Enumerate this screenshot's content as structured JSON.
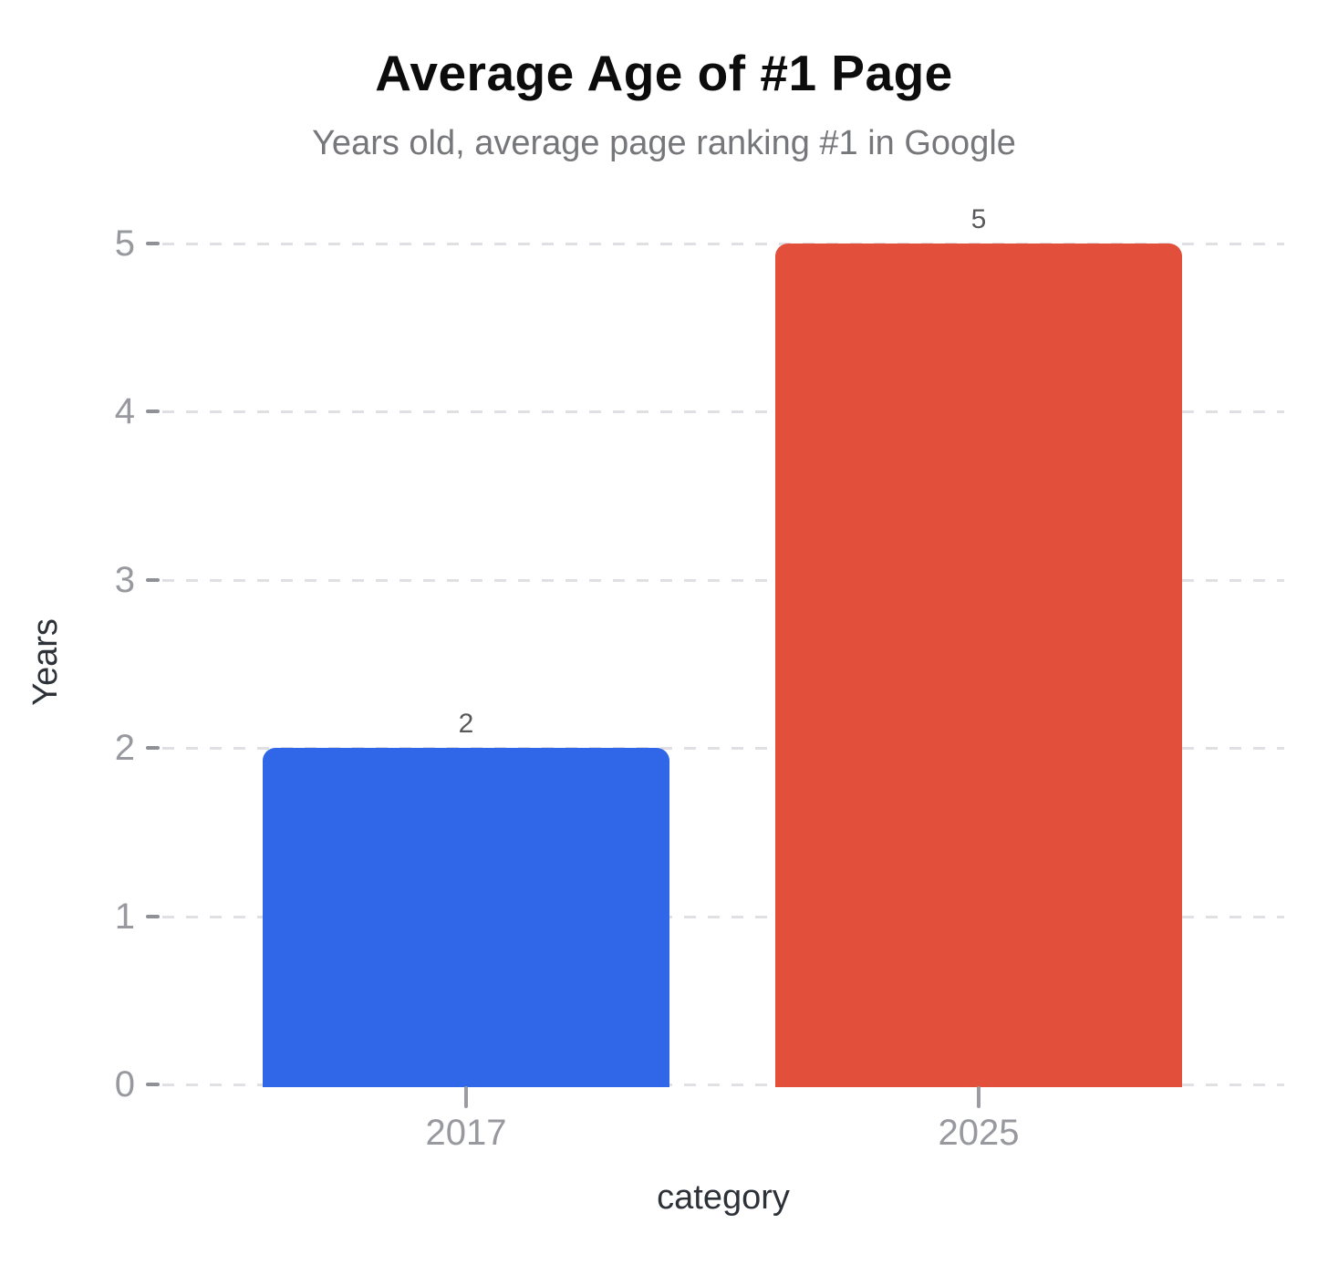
{
  "chart_data": {
    "type": "bar",
    "title": "Average Age of #1 Page",
    "subtitle": "Years old, average page ranking #1 in Google",
    "xlabel": "category",
    "ylabel": "Years",
    "categories": [
      "2017",
      "2025"
    ],
    "values": [
      2,
      5
    ],
    "value_labels": [
      "2",
      "5"
    ],
    "bar_colors": [
      "#3067e8",
      "#e2503c"
    ],
    "ylim": [
      0,
      5
    ],
    "yticks": [
      0,
      1,
      2,
      3,
      4,
      5
    ],
    "grid": {
      "horizontal": true,
      "style": "dashed",
      "color": "#e0e0e4"
    },
    "legend": null,
    "text_colors": {
      "title": "#0c0c0c",
      "subtitle": "#76777b",
      "tick_labels": "#97999e",
      "axis_titles": "#2d3138",
      "value_labels": "#58595c",
      "tick_marks": "#8e9095"
    }
  }
}
